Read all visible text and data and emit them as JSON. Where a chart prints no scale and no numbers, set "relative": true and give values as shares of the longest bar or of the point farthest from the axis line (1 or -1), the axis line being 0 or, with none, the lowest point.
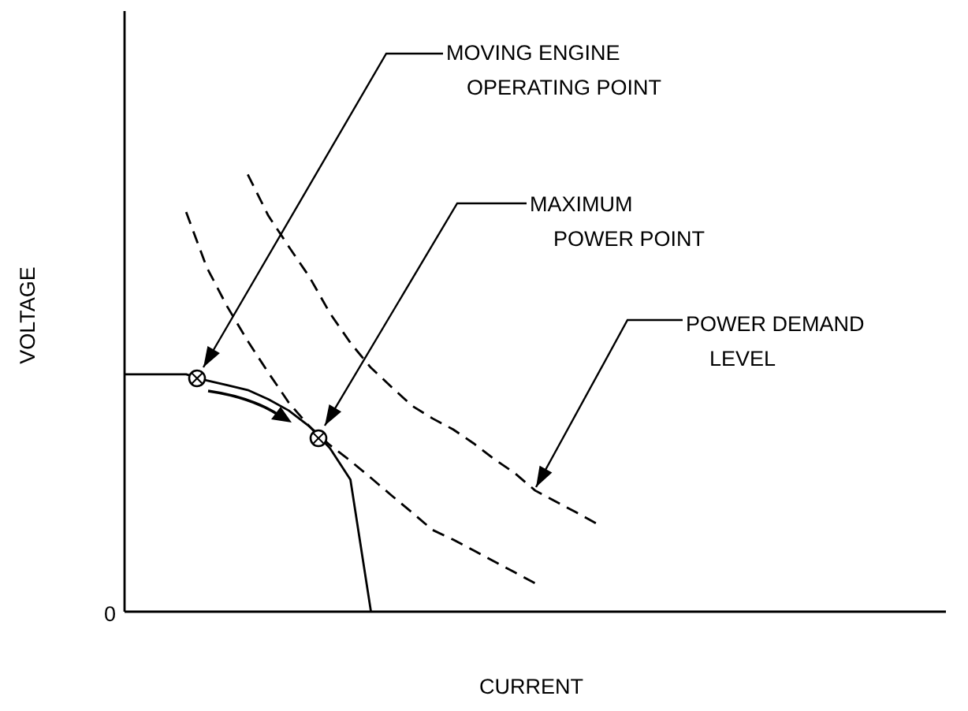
{
  "chart_data": {
    "type": "line",
    "relative": true,
    "xlabel": "CURRENT",
    "ylabel": "VOLTAGE",
    "legend": false,
    "grid": false,
    "marker": "none",
    "annotations": [
      "0",
      "MOVING ENGINE\nOPERATING POINT",
      "MAXIMUM\nPOWER POINT",
      "POWER DEMAND\nLEVEL"
    ],
    "categories": [
      null,
      null,
      null,
      null,
      null,
      null,
      null,
      null,
      null,
      null,
      null,
      null,
      null,
      null,
      null,
      null,
      null,
      null,
      null,
      null,
      null,
      null,
      null,
      null,
      null,
      null,
      null,
      null,
      null,
      null,
      null,
      null,
      null,
      null,
      null,
      null,
      null,
      null,
      null,
      null,
      null
    ],
    "series": [
      {
        "color": "#000000",
        "line_style": "solid",
        "values": [
          0.543,
          0.543,
          0.543,
          0.543,
          0.529,
          0.518,
          0.507,
          0.486,
          0.46,
          0.424,
          0.374,
          0.302,
          0,
          null,
          null,
          null,
          null,
          null,
          null,
          null,
          null,
          null,
          null,
          null,
          null,
          null,
          null,
          null,
          null,
          null,
          null,
          null,
          null,
          null,
          null,
          null,
          null,
          null,
          null,
          null,
          null
        ]
      },
      {
        "color": "#000000",
        "line_style": "dashed",
        "values": [
          null,
          null,
          null,
          0.914,
          0.788,
          0.698,
          0.619,
          0.547,
          0.478,
          0.424,
          0.381,
          0.345,
          0.306,
          0.266,
          0.227,
          0.187,
          0.165,
          0.14,
          0.115,
          0.09,
          0.065,
          null,
          null,
          null,
          null,
          null,
          null,
          null,
          null,
          null,
          null,
          null,
          null,
          null,
          null,
          null,
          null,
          null,
          null,
          null,
          null
        ]
      },
      {
        "color": "#000000",
        "line_style": "dashed",
        "values": [
          null,
          null,
          null,
          null,
          null,
          null,
          1,
          0.906,
          0.835,
          0.766,
          0.683,
          0.615,
          0.558,
          0.514,
          0.471,
          0.442,
          0.417,
          0.385,
          0.349,
          0.317,
          0.277,
          0.252,
          0.227,
          0.201,
          null,
          null,
          null,
          null,
          null,
          null,
          null,
          null,
          null,
          null,
          null,
          null,
          null,
          null,
          null,
          null,
          null
        ]
      }
    ]
  }
}
